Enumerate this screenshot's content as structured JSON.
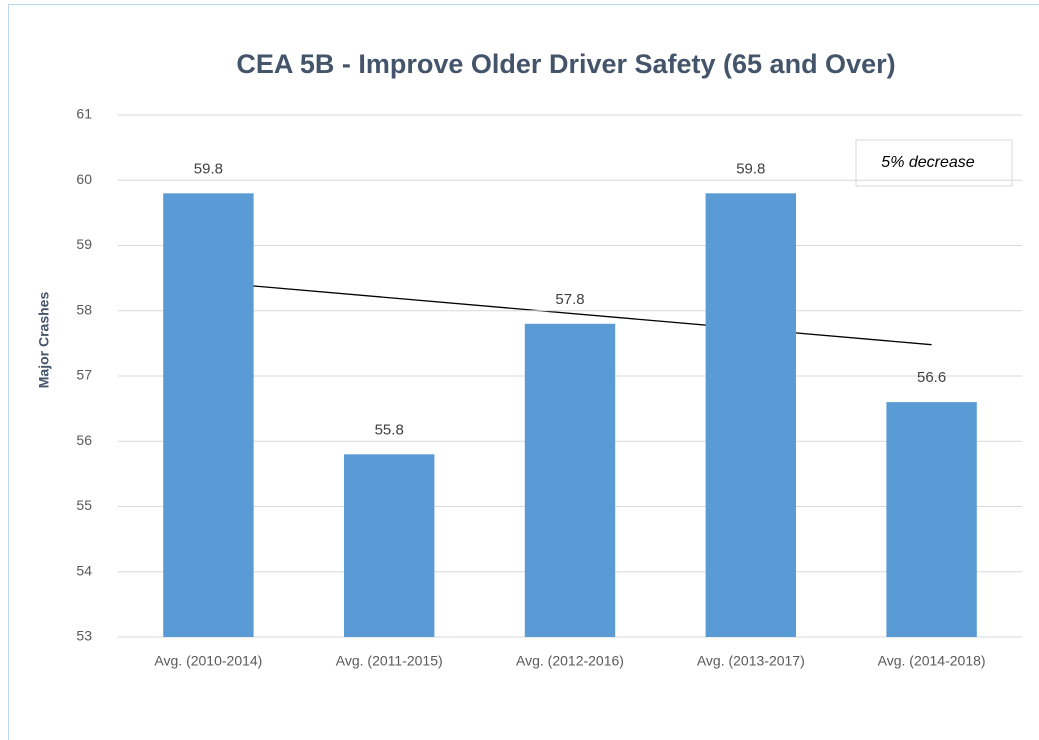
{
  "chart_data": {
    "type": "bar",
    "title": "CEA 5B - Improve Older Driver Safety (65 and Over)",
    "y_label": "Major Crashes",
    "annotation": "5% decrease",
    "categories": [
      "Avg. (2010-2014)",
      "Avg. (2011-2015)",
      "Avg. (2012-2016)",
      "Avg. (2013-2017)",
      "Avg. (2014-2018)"
    ],
    "values": [
      59.8,
      55.8,
      57.8,
      59.8,
      56.6
    ],
    "color": "#5b9bd5",
    "trend": {
      "values": [
        58.44,
        57.48
      ],
      "color": "#000000"
    },
    "ylim": [
      53,
      61
    ],
    "yticks": [
      53,
      54,
      55,
      56,
      57,
      58,
      59,
      60,
      61
    ],
    "grid": true
  }
}
